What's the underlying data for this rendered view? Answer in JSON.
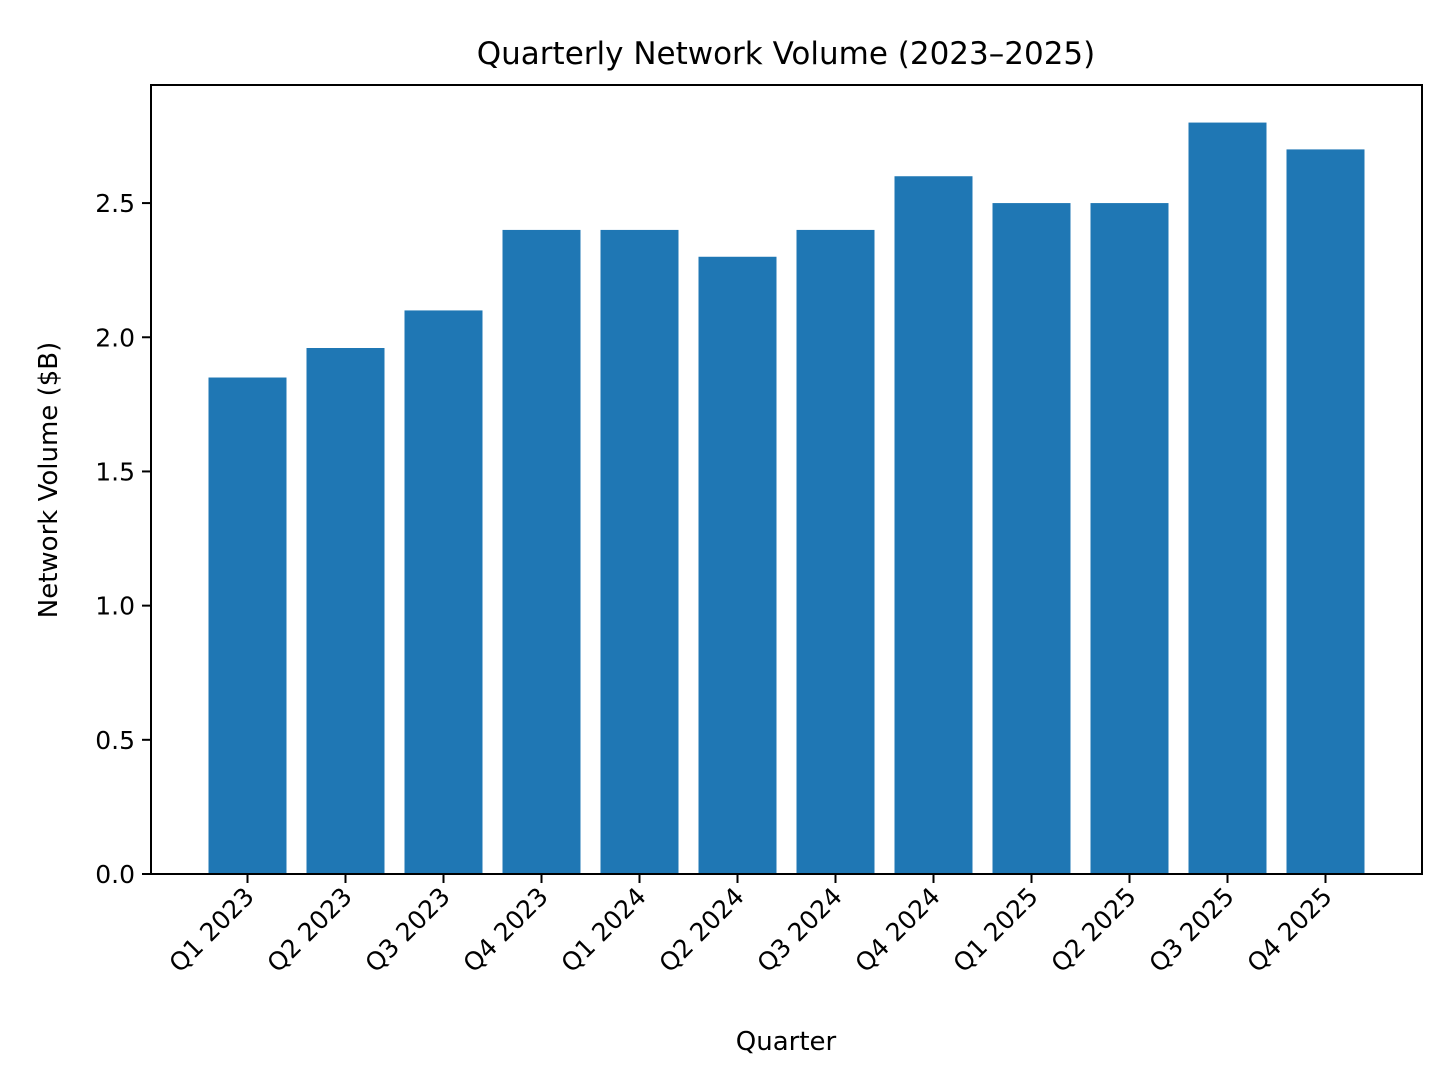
{
  "chart_data": {
    "type": "bar",
    "title": "Quarterly Network Volume (2023–2025)",
    "xlabel": "Quarter",
    "ylabel": "Network Volume ($B)",
    "categories": [
      "Q1 2023",
      "Q2 2023",
      "Q3 2023",
      "Q4 2023",
      "Q1 2024",
      "Q2 2024",
      "Q3 2024",
      "Q4 2024",
      "Q1 2025",
      "Q2 2025",
      "Q3 2025",
      "Q4 2025"
    ],
    "values": [
      1.85,
      1.96,
      2.1,
      2.4,
      2.4,
      2.3,
      2.4,
      2.6,
      2.5,
      2.5,
      2.8,
      2.7
    ],
    "ylim": [
      0,
      2.94
    ],
    "yticks": [
      0.0,
      0.5,
      1.0,
      1.5,
      2.0,
      2.5
    ],
    "ytick_labels": [
      "0.0",
      "0.5",
      "1.0",
      "1.5",
      "2.0",
      "2.5"
    ],
    "grid": false,
    "colors": {
      "bar": "#1f77b4",
      "axis": "#000000",
      "background": "#ffffff"
    }
  }
}
